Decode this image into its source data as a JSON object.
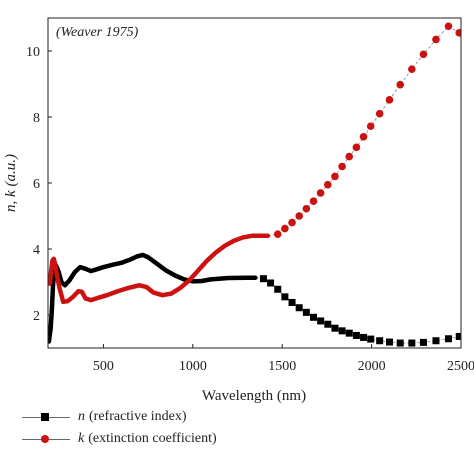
{
  "chart_data": {
    "type": "line",
    "annotation": "(Weaver 1975)",
    "xlabel": "Wavelength (nm)",
    "ylabel": "n, k (a.u.)",
    "xlim": [
      190,
      2500
    ],
    "ylim": [
      1.0,
      11.0
    ],
    "xticks": [
      500,
      1000,
      1500,
      2000,
      2500
    ],
    "yticks": [
      2,
      4,
      6,
      8,
      10
    ],
    "grid": false,
    "legend_position": "bottom-left",
    "series": [
      {
        "symbol": "n",
        "description": "(refractive index)",
        "color": "#000000",
        "marker": "square",
        "line": [
          [
            195,
            1.2
          ],
          [
            205,
            1.6
          ],
          [
            212,
            2.2
          ],
          [
            218,
            2.9
          ],
          [
            225,
            3.3
          ],
          [
            235,
            3.5
          ],
          [
            250,
            3.3
          ],
          [
            265,
            3.0
          ],
          [
            285,
            2.9
          ],
          [
            310,
            3.05
          ],
          [
            340,
            3.3
          ],
          [
            370,
            3.45
          ],
          [
            400,
            3.4
          ],
          [
            430,
            3.33
          ],
          [
            460,
            3.38
          ],
          [
            500,
            3.45
          ],
          [
            550,
            3.52
          ],
          [
            600,
            3.58
          ],
          [
            650,
            3.68
          ],
          [
            690,
            3.78
          ],
          [
            720,
            3.82
          ],
          [
            750,
            3.75
          ],
          [
            800,
            3.55
          ],
          [
            850,
            3.35
          ],
          [
            900,
            3.2
          ],
          [
            950,
            3.08
          ],
          [
            1000,
            3.02
          ],
          [
            1050,
            3.03
          ],
          [
            1100,
            3.08
          ],
          [
            1200,
            3.12
          ],
          [
            1300,
            3.13
          ],
          [
            1350,
            3.13
          ]
        ],
        "markers": [
          [
            1395,
            3.1
          ],
          [
            1435,
            2.97
          ],
          [
            1475,
            2.78
          ],
          [
            1515,
            2.55
          ],
          [
            1555,
            2.38
          ],
          [
            1595,
            2.22
          ],
          [
            1635,
            2.08
          ],
          [
            1675,
            1.93
          ],
          [
            1715,
            1.82
          ],
          [
            1755,
            1.72
          ],
          [
            1795,
            1.6
          ],
          [
            1835,
            1.52
          ],
          [
            1875,
            1.45
          ],
          [
            1915,
            1.38
          ],
          [
            1955,
            1.32
          ],
          [
            1995,
            1.27
          ],
          [
            2045,
            1.22
          ],
          [
            2100,
            1.18
          ],
          [
            2160,
            1.15
          ],
          [
            2225,
            1.15
          ],
          [
            2290,
            1.17
          ],
          [
            2360,
            1.22
          ],
          [
            2430,
            1.28
          ],
          [
            2490,
            1.35
          ]
        ]
      },
      {
        "symbol": "k",
        "description": "(extinction coefficient)",
        "color": "#cc1111",
        "marker": "circle",
        "line": [
          [
            195,
            3.0
          ],
          [
            200,
            2.95
          ],
          [
            208,
            3.35
          ],
          [
            215,
            3.65
          ],
          [
            222,
            3.7
          ],
          [
            230,
            3.55
          ],
          [
            240,
            3.2
          ],
          [
            255,
            2.8
          ],
          [
            275,
            2.4
          ],
          [
            300,
            2.42
          ],
          [
            330,
            2.55
          ],
          [
            360,
            2.72
          ],
          [
            380,
            2.7
          ],
          [
            400,
            2.5
          ],
          [
            430,
            2.45
          ],
          [
            470,
            2.52
          ],
          [
            520,
            2.6
          ],
          [
            580,
            2.72
          ],
          [
            640,
            2.82
          ],
          [
            700,
            2.9
          ],
          [
            740,
            2.85
          ],
          [
            780,
            2.68
          ],
          [
            830,
            2.6
          ],
          [
            880,
            2.65
          ],
          [
            930,
            2.82
          ],
          [
            980,
            3.05
          ],
          [
            1030,
            3.35
          ],
          [
            1080,
            3.65
          ],
          [
            1130,
            3.9
          ],
          [
            1180,
            4.1
          ],
          [
            1230,
            4.25
          ],
          [
            1280,
            4.35
          ],
          [
            1330,
            4.4
          ],
          [
            1380,
            4.4
          ],
          [
            1420,
            4.4
          ]
        ],
        "markers": [
          [
            1475,
            4.45
          ],
          [
            1515,
            4.62
          ],
          [
            1555,
            4.8
          ],
          [
            1595,
            5.0
          ],
          [
            1635,
            5.22
          ],
          [
            1675,
            5.45
          ],
          [
            1715,
            5.7
          ],
          [
            1755,
            5.95
          ],
          [
            1795,
            6.2
          ],
          [
            1835,
            6.5
          ],
          [
            1875,
            6.8
          ],
          [
            1915,
            7.08
          ],
          [
            1955,
            7.4
          ],
          [
            1995,
            7.72
          ],
          [
            2045,
            8.1
          ],
          [
            2100,
            8.52
          ],
          [
            2160,
            8.98
          ],
          [
            2225,
            9.45
          ],
          [
            2290,
            9.9
          ],
          [
            2360,
            10.35
          ],
          [
            2430,
            10.75
          ],
          [
            2490,
            10.55
          ]
        ]
      }
    ]
  }
}
